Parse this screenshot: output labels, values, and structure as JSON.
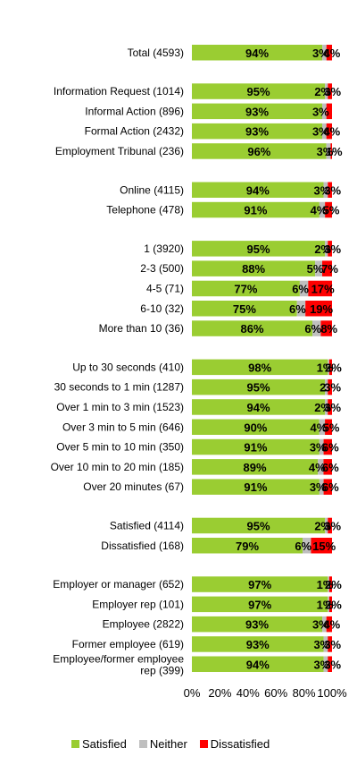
{
  "chart_data": {
    "type": "bar",
    "orientation": "horizontal",
    "stacked": true,
    "percent_stacked": true,
    "xlim": [
      0,
      100
    ],
    "x_ticks": [
      "0%",
      "20%",
      "40%",
      "60%",
      "80%",
      "100%"
    ],
    "grid": false,
    "legend_position": "bottom",
    "colors": {
      "Satisfied": "#9ACD32",
      "Neither": "#BFBFBF",
      "Dissatisfied": "#FF0000"
    },
    "groups": [
      {
        "items": [
          {
            "label": "Total (4593)",
            "values": [
              94,
              3,
              4
            ],
            "labels": [
              "94%",
              "3%",
              "4%"
            ]
          }
        ]
      },
      {
        "items": [
          {
            "label": "Information Request (1014)",
            "values": [
              95,
              2,
              3
            ],
            "labels": [
              "95%",
              "2%",
              "3%"
            ]
          },
          {
            "label": "Informal Action (896)",
            "values": [
              93,
              3,
              4
            ],
            "labels": [
              "93%",
              "3%",
              ""
            ]
          },
          {
            "label": "Formal Action (2432)",
            "values": [
              93,
              3,
              4
            ],
            "labels": [
              "93%",
              "3%",
              "4%"
            ]
          },
          {
            "label": "Employment Tribunal (236)",
            "values": [
              96,
              3,
              1
            ],
            "labels": [
              "96%",
              "3%",
              "1%"
            ]
          }
        ]
      },
      {
        "items": [
          {
            "label": "Online (4115)",
            "values": [
              94,
              3,
              3
            ],
            "labels": [
              "94%",
              "3%",
              "3%"
            ]
          },
          {
            "label": "Telephone (478)",
            "values": [
              91,
              4,
              5
            ],
            "labels": [
              "91%",
              "4%",
              "5%"
            ]
          }
        ]
      },
      {
        "items": [
          {
            "label": "1 (3920)",
            "values": [
              95,
              2,
              3
            ],
            "labels": [
              "95%",
              "2%",
              "3%"
            ]
          },
          {
            "label": "2-3 (500)",
            "values": [
              88,
              5,
              7
            ],
            "labels": [
              "88%",
              "5%",
              "7%"
            ]
          },
          {
            "label": "4-5 (71)",
            "values": [
              77,
              6,
              17
            ],
            "labels": [
              "77%",
              "6%",
              "17%"
            ]
          },
          {
            "label": "6-10 (32)",
            "values": [
              75,
              6,
              19
            ],
            "labels": [
              "75%",
              "6%",
              "19%"
            ]
          },
          {
            "label": "More than 10 (36)",
            "values": [
              86,
              6,
              8
            ],
            "labels": [
              "86%",
              "6%",
              "8%"
            ]
          }
        ]
      },
      {
        "items": [
          {
            "label": "Up to 30 seconds (410)",
            "values": [
              98,
              1,
              2
            ],
            "labels": [
              "98%",
              "1%",
              "2%"
            ]
          },
          {
            "label": "30 seconds to 1 min (1287)",
            "values": [
              95,
              2,
              3
            ],
            "labels": [
              "95%",
              "2",
              "3%"
            ]
          },
          {
            "label": "Over 1 min to 3 min (1523)",
            "values": [
              94,
              2,
              3
            ],
            "labels": [
              "94%",
              "2%",
              "3%"
            ]
          },
          {
            "label": "Over 3 min to 5 min (646)",
            "values": [
              90,
              4,
              5
            ],
            "labels": [
              "90%",
              "4%",
              "5%"
            ]
          },
          {
            "label": "Over 5 min to 10 min (350)",
            "values": [
              91,
              3,
              6
            ],
            "labels": [
              "91%",
              "3%",
              "6%"
            ]
          },
          {
            "label": "Over 10 min to 20 min (185)",
            "values": [
              89,
              4,
              6
            ],
            "labels": [
              "89%",
              "4%",
              "6%"
            ]
          },
          {
            "label": "Over 20 minutes (67)",
            "values": [
              91,
              3,
              6
            ],
            "labels": [
              "91%",
              "3%",
              "6%"
            ]
          }
        ]
      },
      {
        "items": [
          {
            "label": "Satisfied (4114)",
            "values": [
              95,
              2,
              3
            ],
            "labels": [
              "95%",
              "2%",
              "3%"
            ]
          },
          {
            "label": "Dissatisfied (168)",
            "values": [
              79,
              6,
              15
            ],
            "labels": [
              "79%",
              "6%",
              "15%"
            ]
          }
        ]
      },
      {
        "items": [
          {
            "label": "Employer or manager (652)",
            "values": [
              97,
              1,
              2
            ],
            "labels": [
              "97%",
              "1%",
              "2%"
            ]
          },
          {
            "label": "Employer rep (101)",
            "values": [
              97,
              1,
              2
            ],
            "labels": [
              "97%",
              "1%",
              "2%"
            ]
          },
          {
            "label": "Employee (2822)",
            "values": [
              93,
              3,
              4
            ],
            "labels": [
              "93%",
              "3%",
              "4%"
            ]
          },
          {
            "label": "Former employee (619)",
            "values": [
              93,
              3,
              3
            ],
            "labels": [
              "93%",
              "3%",
              "3%"
            ]
          },
          {
            "label": "Employee/former employee rep (399)",
            "label_lines": [
              "Employee/former employee",
              "rep (399)"
            ],
            "values": [
              94,
              3,
              3
            ],
            "labels": [
              "94%",
              "3%",
              "3%"
            ]
          }
        ]
      }
    ],
    "series": [
      {
        "name": "Satisfied",
        "color": "#9ACD32"
      },
      {
        "name": "Neither",
        "color": "#BFBFBF"
      },
      {
        "name": "Dissatisfied",
        "color": "#FF0000"
      }
    ]
  }
}
